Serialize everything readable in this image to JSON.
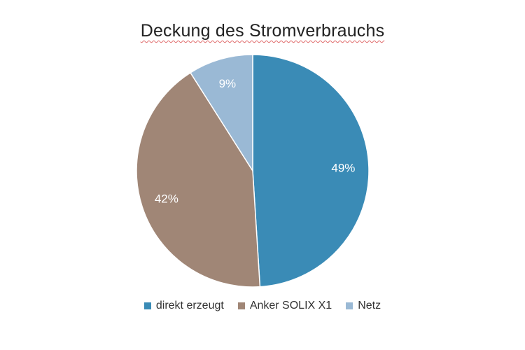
{
  "chart_data": {
    "type": "pie",
    "title": "Deckung des Stromverbrauchs",
    "categories": [
      "direkt erzeugt",
      "Anker SOLIX X1",
      "Netz"
    ],
    "values": [
      49,
      42,
      9
    ],
    "labels": [
      "49%",
      "42%",
      "9%"
    ],
    "colors": [
      "#3a8bb6",
      "#a08676",
      "#9ab9d5"
    ],
    "legend_position": "bottom"
  }
}
